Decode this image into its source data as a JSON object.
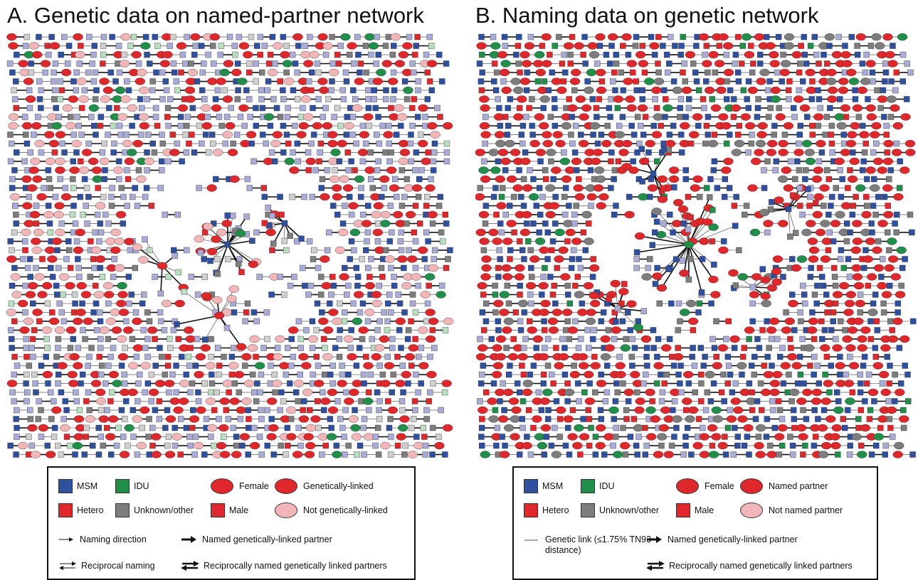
{
  "panel_a": {
    "title": "A. Genetic data on named-partner network"
  },
  "panel_b": {
    "title": "B. Naming data on genetic network"
  },
  "colors": {
    "msm": "#2f4f9f",
    "idu": "#1f8f4a",
    "hetero": "#e0282c",
    "unknown": "#7d7d7d",
    "pink": "#f2b6b8",
    "light_blue": "#a9acd6",
    "light_green": "#b9dfc1",
    "light_gray": "#cfcfcf",
    "edge": "#111111"
  },
  "legend_a": {
    "msm": "MSM",
    "idu": "IDU",
    "hetero": "Hetero",
    "unknown": "Unknown/other",
    "female": "Female",
    "male": "Male",
    "linked": "Genetically-linked",
    "not_linked": "Not genetically-linked",
    "naming_direction": "Naming direction",
    "named_linked": "Named genetically-linked partner",
    "reciprocal": "Reciprocal naming",
    "reciprocal_linked": "Reciprocally named genetically linked partners"
  },
  "legend_b": {
    "msm": "MSM",
    "idu": "IDU",
    "hetero": "Hetero",
    "unknown": "Unknown/other",
    "female": "Female",
    "male": "Male",
    "named": "Named partner",
    "not_named": "Not named partner",
    "genetic_link": "Genetic link (≤1.75% TN93 distance)",
    "named_linked": "Named genetically-linked partner",
    "reciprocal_linked": "Reciprocally named genetically linked partners"
  }
}
